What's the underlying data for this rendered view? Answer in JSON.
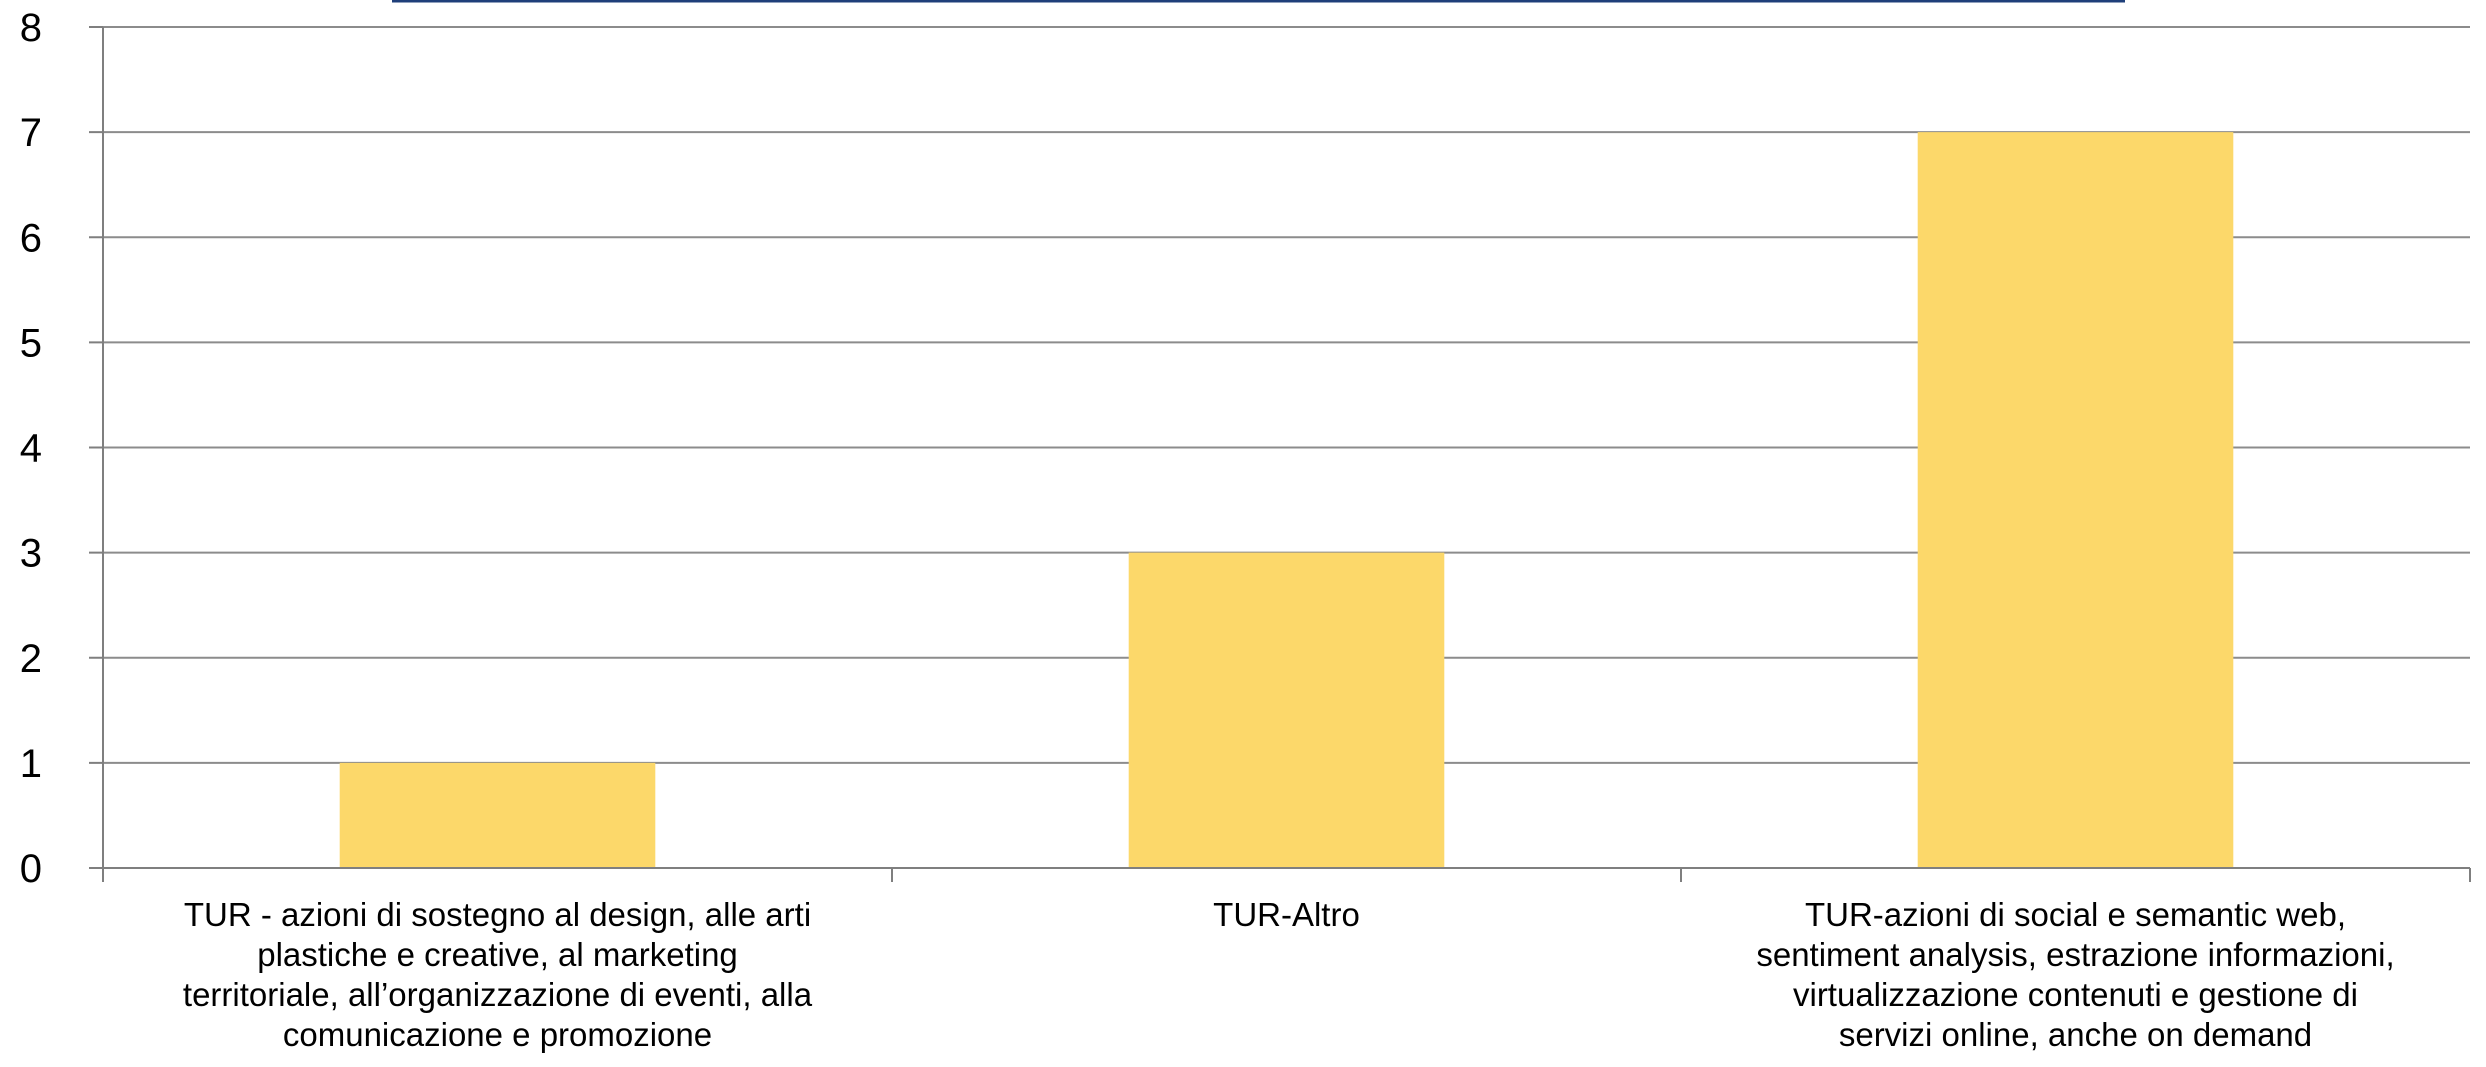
{
  "chart_data": {
    "type": "bar",
    "categories": [
      [
        "TUR - azioni di sostegno al design, alle arti",
        "plastiche e creative, al marketing",
        "territoriale, all’organizzazione di eventi, alla",
        "comunicazione e promozione"
      ],
      [
        "TUR-Altro"
      ],
      [
        "TUR-azioni di social e semantic web,",
        "sentiment analysis, estrazione informazioni,",
        "virtualizzazione contenuti e gestione di",
        "servizi online, anche on demand"
      ]
    ],
    "values": [
      1,
      3,
      7
    ],
    "ylim": [
      0,
      8
    ],
    "yticks": [
      "0",
      "1",
      "2",
      "3",
      "4",
      "5",
      "6",
      "7",
      "8"
    ],
    "grid": true,
    "colors": {
      "bar": "#FCD86A",
      "grid": "#8C8C8C",
      "axis": "#7F7F7F",
      "frame_top": "#1F3F7A"
    }
  }
}
